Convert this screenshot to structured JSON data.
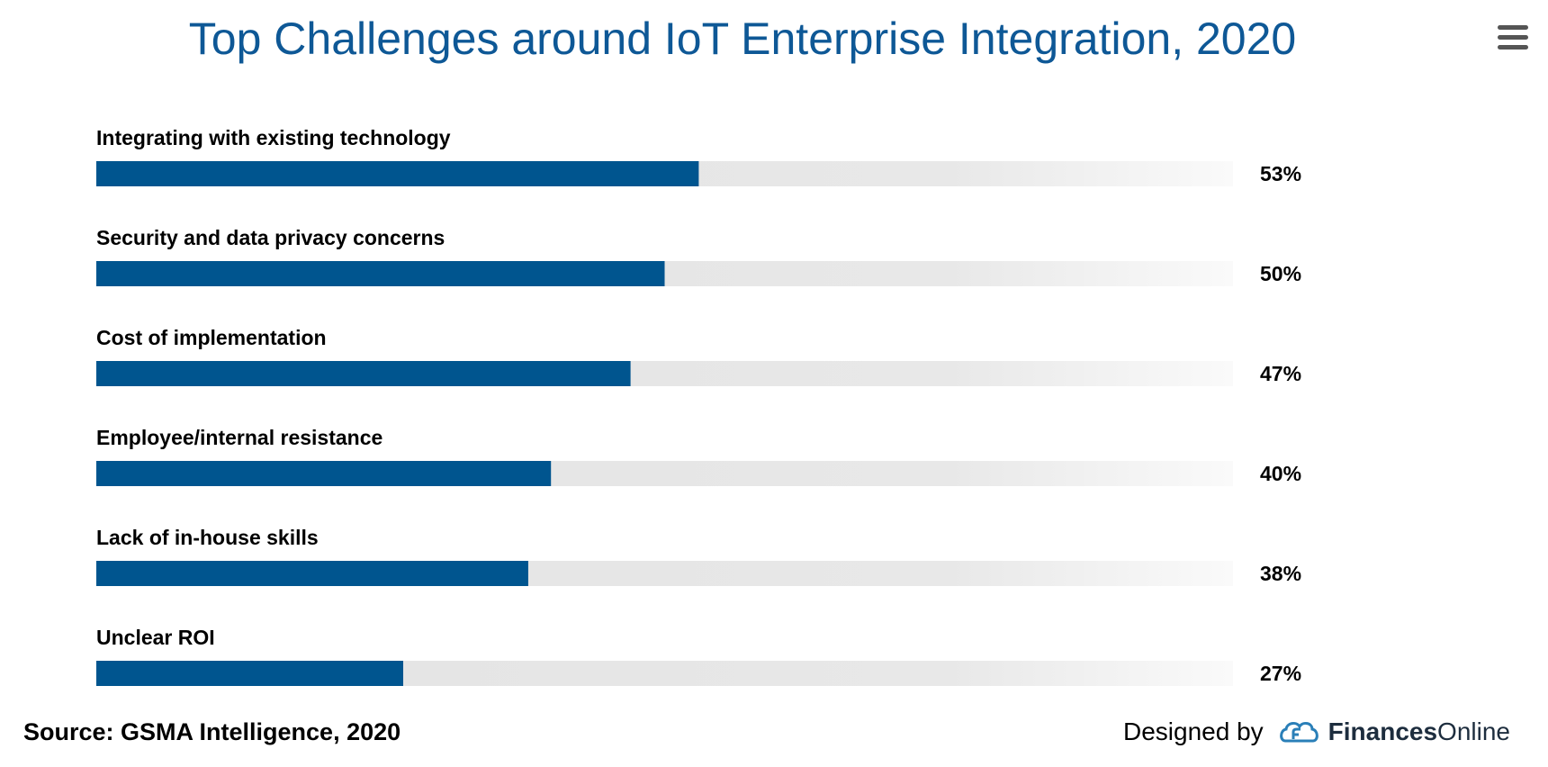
{
  "header": {
    "title": "Top Challenges around IoT Enterprise Integration, 2020",
    "menu_icon": "hamburger-menu-icon"
  },
  "colors": {
    "bar": "#00558f",
    "track": "#e3e3e3",
    "title": "#0e5896"
  },
  "chart_data": {
    "type": "bar",
    "orientation": "horizontal",
    "title": "Top Challenges around IoT Enterprise Integration, 2020",
    "categories": [
      "Integrating with existing technology",
      "Security and data privacy concerns",
      "Cost of implementation",
      "Employee/internal resistance",
      "Lack of in-house skills",
      "Unclear ROI"
    ],
    "values": [
      53,
      50,
      47,
      40,
      38,
      27
    ],
    "value_labels": [
      "53%",
      "50%",
      "47%",
      "40%",
      "38%",
      "27%"
    ],
    "xlim": [
      0,
      100
    ],
    "unit": "%"
  },
  "footer": {
    "source": "Source: GSMA Intelligence, 2020",
    "designed_by": "Designed by",
    "brand_bold": "Finances",
    "brand_light": "Online"
  }
}
